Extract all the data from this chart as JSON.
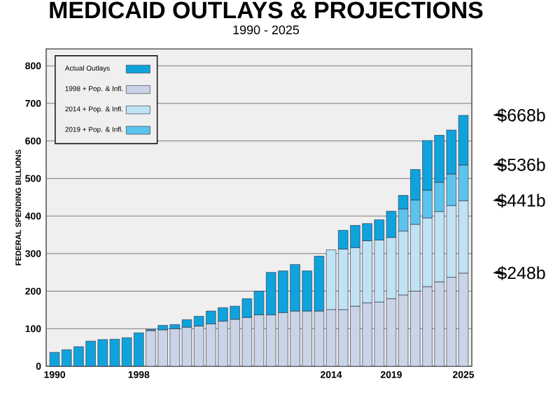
{
  "chart_data": {
    "type": "bar",
    "stacked": true,
    "title": "MEDICAID OUTLAYS & PROJECTIONS",
    "subtitle": "1990 - 2025",
    "ylabel": "FEDERAL SPENDING BILLIONS",
    "categories": [
      "1990",
      null,
      null,
      null,
      null,
      null,
      null,
      "1998",
      null,
      null,
      null,
      null,
      null,
      null,
      null,
      null,
      null,
      null,
      null,
      null,
      null,
      null,
      null,
      "2014",
      null,
      null,
      null,
      null,
      "2019",
      null,
      null,
      null,
      null,
      null,
      "2025"
    ],
    "series": [
      {
        "name": "1998 + Pop. & Infl.",
        "color": "#c9d5e6",
        "values": [
          null,
          null,
          null,
          null,
          null,
          null,
          null,
          null,
          95,
          97,
          100,
          104,
          107,
          113,
          120,
          125,
          130,
          137,
          137,
          143,
          147,
          147,
          147,
          151,
          151,
          160,
          169,
          171,
          180,
          190,
          200,
          212,
          225,
          237,
          248
        ]
      },
      {
        "name": "2014 + Pop. & Infl.",
        "color": "#bfe3f4",
        "values": [
          null,
          null,
          null,
          null,
          null,
          null,
          null,
          null,
          null,
          null,
          null,
          null,
          null,
          null,
          null,
          null,
          null,
          null,
          null,
          null,
          null,
          null,
          null,
          159,
          161,
          156,
          165,
          165,
          163,
          170,
          178,
          183,
          187,
          191,
          193
        ]
      },
      {
        "name": "2019 + Pop. & Infl.",
        "color": "#5cc4ec",
        "values": [
          null,
          null,
          null,
          null,
          null,
          null,
          null,
          null,
          null,
          null,
          null,
          null,
          null,
          null,
          null,
          null,
          null,
          null,
          null,
          null,
          null,
          null,
          null,
          null,
          null,
          null,
          null,
          null,
          null,
          59,
          65,
          74,
          78,
          84,
          95
        ]
      },
      {
        "name": "Actual Outlays",
        "color": "#0fa3dd",
        "values": [
          37,
          44,
          52,
          67,
          71,
          72,
          76,
          89,
          3,
          12,
          11,
          20,
          26,
          34,
          36,
          35,
          50,
          63,
          113,
          111,
          124,
          107,
          146,
          null,
          50,
          59,
          46,
          54,
          70,
          36,
          81,
          132,
          125,
          117,
          132
        ]
      }
    ],
    "annotations": [
      {
        "text": "$668b",
        "x": "2025",
        "y": 668
      },
      {
        "text": "$536b",
        "x": "2025",
        "y": 536
      },
      {
        "text": "$441b",
        "x": "2025",
        "y": 441
      },
      {
        "text": "$248b",
        "x": "2025",
        "y": 248
      }
    ],
    "ylim": [
      0,
      845
    ],
    "yticks": [
      0,
      100,
      200,
      300,
      400,
      500,
      600,
      700,
      800
    ],
    "grid": "y",
    "legend": "top left"
  }
}
